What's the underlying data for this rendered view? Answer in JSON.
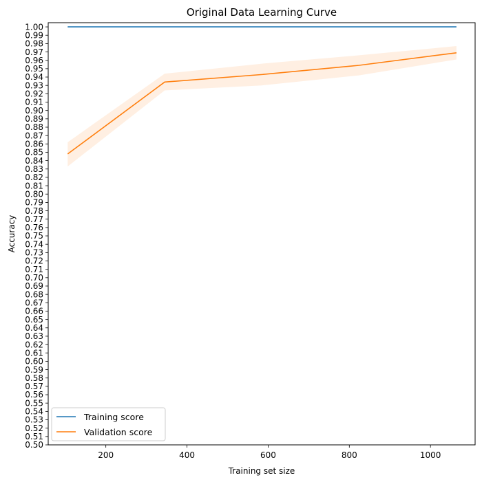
{
  "chart_data": {
    "type": "line",
    "title": "Original Data Learning Curve",
    "xlabel": "Training set size",
    "ylabel": "Accuracy",
    "xlim": [
      58,
      1110
    ],
    "ylim": [
      0.5,
      1.005
    ],
    "x_ticks": [
      200,
      400,
      600,
      800,
      1000
    ],
    "y_ticks": [
      0.5,
      0.51,
      0.52,
      0.53,
      0.54,
      0.55,
      0.56,
      0.57,
      0.58,
      0.59,
      0.6,
      0.61,
      0.62,
      0.63,
      0.64,
      0.65,
      0.66,
      0.67,
      0.68,
      0.69,
      0.7,
      0.71,
      0.72,
      0.73,
      0.74,
      0.75,
      0.76,
      0.77,
      0.78,
      0.79,
      0.8,
      0.81,
      0.82,
      0.83,
      0.84,
      0.85,
      0.86,
      0.87,
      0.88,
      0.89,
      0.9,
      0.91,
      0.92,
      0.93,
      0.94,
      0.95,
      0.96,
      0.97,
      0.98,
      0.99,
      1.0
    ],
    "x": [
      106,
      345,
      585,
      824,
      1064
    ],
    "series": [
      {
        "name": "Training score",
        "color": "#1f77b4",
        "values": [
          1.0,
          1.0,
          1.0,
          1.0,
          1.0
        ],
        "std_upper": [
          1.0,
          1.0,
          1.0,
          1.0,
          1.0
        ],
        "std_lower": [
          1.0,
          1.0,
          1.0,
          1.0,
          1.0
        ]
      },
      {
        "name": "Validation score",
        "color": "#ff7f0e",
        "values": [
          0.848,
          0.934,
          0.943,
          0.954,
          0.969
        ],
        "std_upper": [
          0.862,
          0.944,
          0.956,
          0.966,
          0.977
        ],
        "std_lower": [
          0.833,
          0.924,
          0.93,
          0.942,
          0.961
        ]
      }
    ],
    "legend_position": "lower-left",
    "grid": false
  }
}
